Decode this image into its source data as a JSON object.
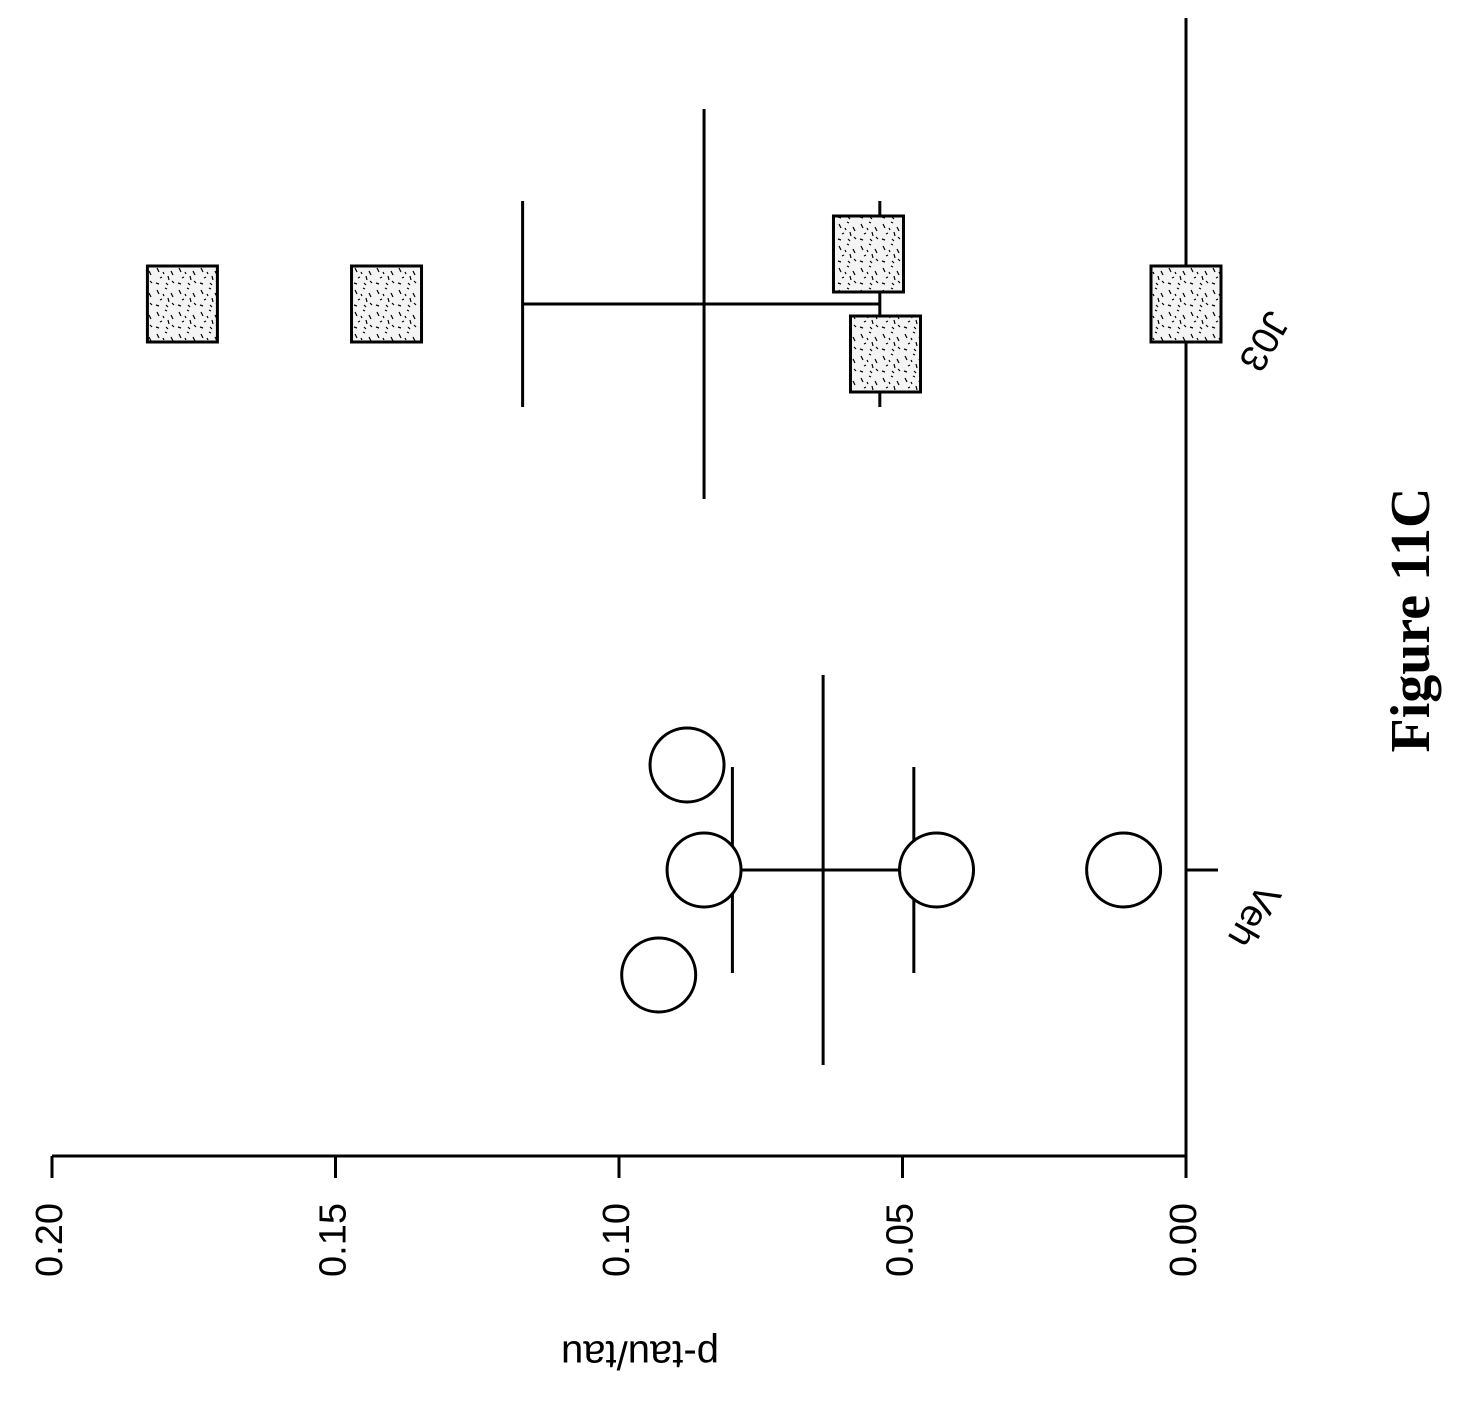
{
  "caption": "Figure 11C",
  "chart_data": {
    "type": "scatter",
    "title": "",
    "xlabel": "",
    "ylabel": "p-tau/tau",
    "ylim": [
      0,
      0.2
    ],
    "yticks": [
      "0.00",
      "0.05",
      "0.10",
      "0.15",
      "0.20"
    ],
    "categories": [
      "Veh",
      "J03"
    ],
    "grid": false,
    "orientation": "page rotated 90 degrees clockwise",
    "series": [
      {
        "category": "Veh",
        "marker": "open-circle",
        "values": [
          0.093,
          0.085,
          0.088,
          0.044,
          0.011
        ],
        "mean": 0.064,
        "sd_upper": 0.08,
        "sd_lower": 0.048
      },
      {
        "category": "J03",
        "marker": "speckled-square",
        "values": [
          0.177,
          0.141,
          0.056,
          0.053,
          0.0
        ],
        "mean": 0.085,
        "sd_upper": 0.117,
        "sd_lower": 0.054
      }
    ]
  }
}
